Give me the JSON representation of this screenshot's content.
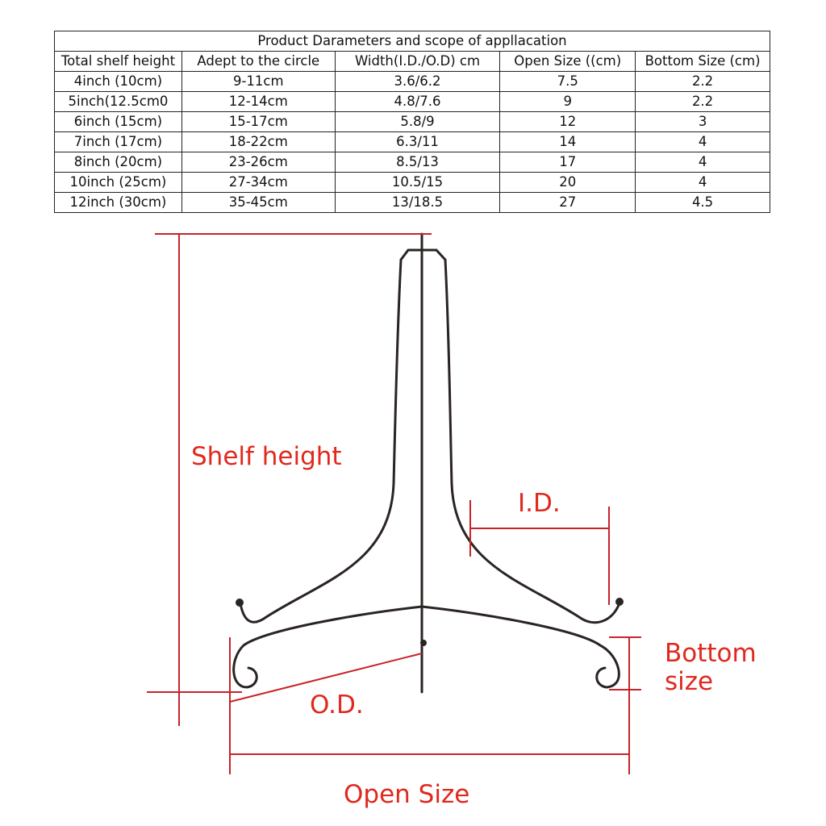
{
  "table": {
    "title": "Product  Darameters and scope of appllacation",
    "header": [
      "Total shelf height",
      "Adept to the circle",
      "Width(I.D./O.D) cm",
      "Open Size ((cm)",
      "Bottom Size (cm)"
    ],
    "rows": [
      [
        "4inch (10cm)",
        "9-11cm",
        "3.6/6.2",
        "7.5",
        "2.2"
      ],
      [
        "5inch(12.5cm0",
        "12-14cm",
        "4.8/7.6",
        "9",
        "2.2"
      ],
      [
        "6inch (15cm)",
        "15-17cm",
        "5.8/9",
        "12",
        "3"
      ],
      [
        "7inch (17cm)",
        "18-22cm",
        "6.3/11",
        "14",
        "4"
      ],
      [
        "8inch (20cm)",
        "23-26cm",
        "8.5/13",
        "17",
        "4"
      ],
      [
        "10inch (25cm)",
        "27-34cm",
        "10.5/15",
        "20",
        "4"
      ],
      [
        "12inch (30cm)",
        "35-45cm",
        "13/18.5",
        "27",
        "4.5"
      ]
    ]
  },
  "diagram": {
    "shelf_height": "Shelf height",
    "inner_diameter": "I.D.",
    "bottom_size": [
      "Bottom",
      "size"
    ],
    "outer_diameter": "O.D.",
    "open_size": "Open Size"
  }
}
